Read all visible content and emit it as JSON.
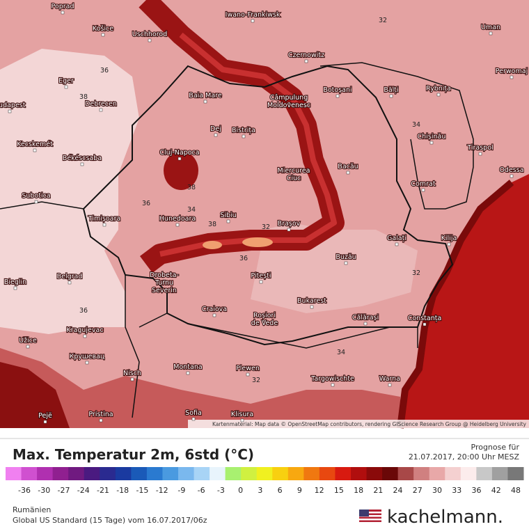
{
  "title": "Max. Temperatur 2m, 6std (°C)",
  "forecast_label": "Prognose für",
  "forecast_time": "21.07.2017, 20:00 Uhr MESZ",
  "region": "Rumänien",
  "model": "Global US Standard (15 Tage) vom 16.07.2017/06z",
  "brand": "kachelmann.",
  "attribution": "Kartenmaterial: Map data © OpenStreetMap contributors, rendering GIScience Research Group @ Heidelberg University",
  "cities": [
    [
      "Poprad"
    ],
    [
      "Košice"
    ],
    [
      "Uschhorod"
    ],
    [
      "Iwano-Frankiwsk"
    ],
    [
      "Uman"
    ],
    [
      "Czernowitz"
    ],
    [
      "Perwomaj"
    ],
    [
      "Eger"
    ],
    [
      "Baia Mare"
    ],
    [
      "Câmpulung",
      "Moldovenesc"
    ],
    [
      "Botoșani"
    ],
    [
      "Bălți"
    ],
    [
      "Rybnița"
    ],
    [
      "Budapest"
    ],
    [
      "Debrecen"
    ],
    [
      "Dej"
    ],
    [
      "Bistrița"
    ],
    [
      "Chișinău"
    ],
    [
      "Kecskemét"
    ],
    [
      "Tiraspol"
    ],
    [
      "Cluj-Napoca"
    ],
    [
      "Békéscsaba"
    ],
    [
      "Bacău"
    ],
    [
      "Odessa"
    ],
    [
      "Miercurea",
      "Ciuc"
    ],
    [
      "Comrat"
    ],
    [
      "Subotica"
    ],
    [
      "Timișoara"
    ],
    [
      "Hunedoara"
    ],
    [
      "Sibiu"
    ],
    [
      "Brașov"
    ],
    [
      "Galați"
    ],
    [
      "Kilija"
    ],
    [
      "Buzău"
    ],
    [
      "Drobeta-",
      "Turnu",
      "Severin"
    ],
    [
      "Pitești"
    ],
    [
      "Belgrad"
    ],
    [
      "Bieglin"
    ],
    [
      "Bukarest"
    ],
    [
      "Craiova"
    ],
    [
      "Roșiori",
      "de Vede"
    ],
    [
      "Călărași"
    ],
    [
      "Constanța"
    ],
    [
      "Kragujevac"
    ],
    [
      "Užice"
    ],
    [
      "Крушевац"
    ],
    [
      "Nisch"
    ],
    [
      "Montana"
    ],
    [
      "Plewen"
    ],
    [
      "Targowischte"
    ],
    [
      "Warna"
    ],
    [
      "Pejë"
    ],
    [
      "Pristina"
    ],
    [
      "Sofia"
    ],
    [
      "Klisura"
    ]
  ],
  "contour_labels": [
    36,
    38,
    32,
    34,
    38,
    36,
    34,
    38,
    32,
    36,
    36,
    32,
    34,
    32
  ],
  "legend": {
    "colors": [
      "#f080f0",
      "#d050d0",
      "#b030b0",
      "#902090",
      "#701a80",
      "#4a1a80",
      "#2a2a90",
      "#1a3aa0",
      "#1a5ab8",
      "#2a7ad0",
      "#4a9ae0",
      "#7ab8ee",
      "#a8d4f6",
      "#e8f4fc",
      "#a8f070",
      "#d0f040",
      "#f0f020",
      "#f8d010",
      "#f8a810",
      "#f07810",
      "#e84810",
      "#d81a10",
      "#b00e0e",
      "#8a0a0a",
      "#6a0808",
      "#a84848",
      "#d08080",
      "#e8a8a8",
      "#f4d0d0",
      "#fcecec",
      "#c8c8c8",
      "#a0a0a0",
      "#787878"
    ],
    "ticks": [
      -36,
      -30,
      -27,
      -24,
      -21,
      -18,
      -15,
      -12,
      -9,
      -6,
      -3,
      0,
      3,
      6,
      9,
      12,
      15,
      18,
      21,
      24,
      27,
      30,
      33,
      36,
      42,
      48
    ]
  }
}
